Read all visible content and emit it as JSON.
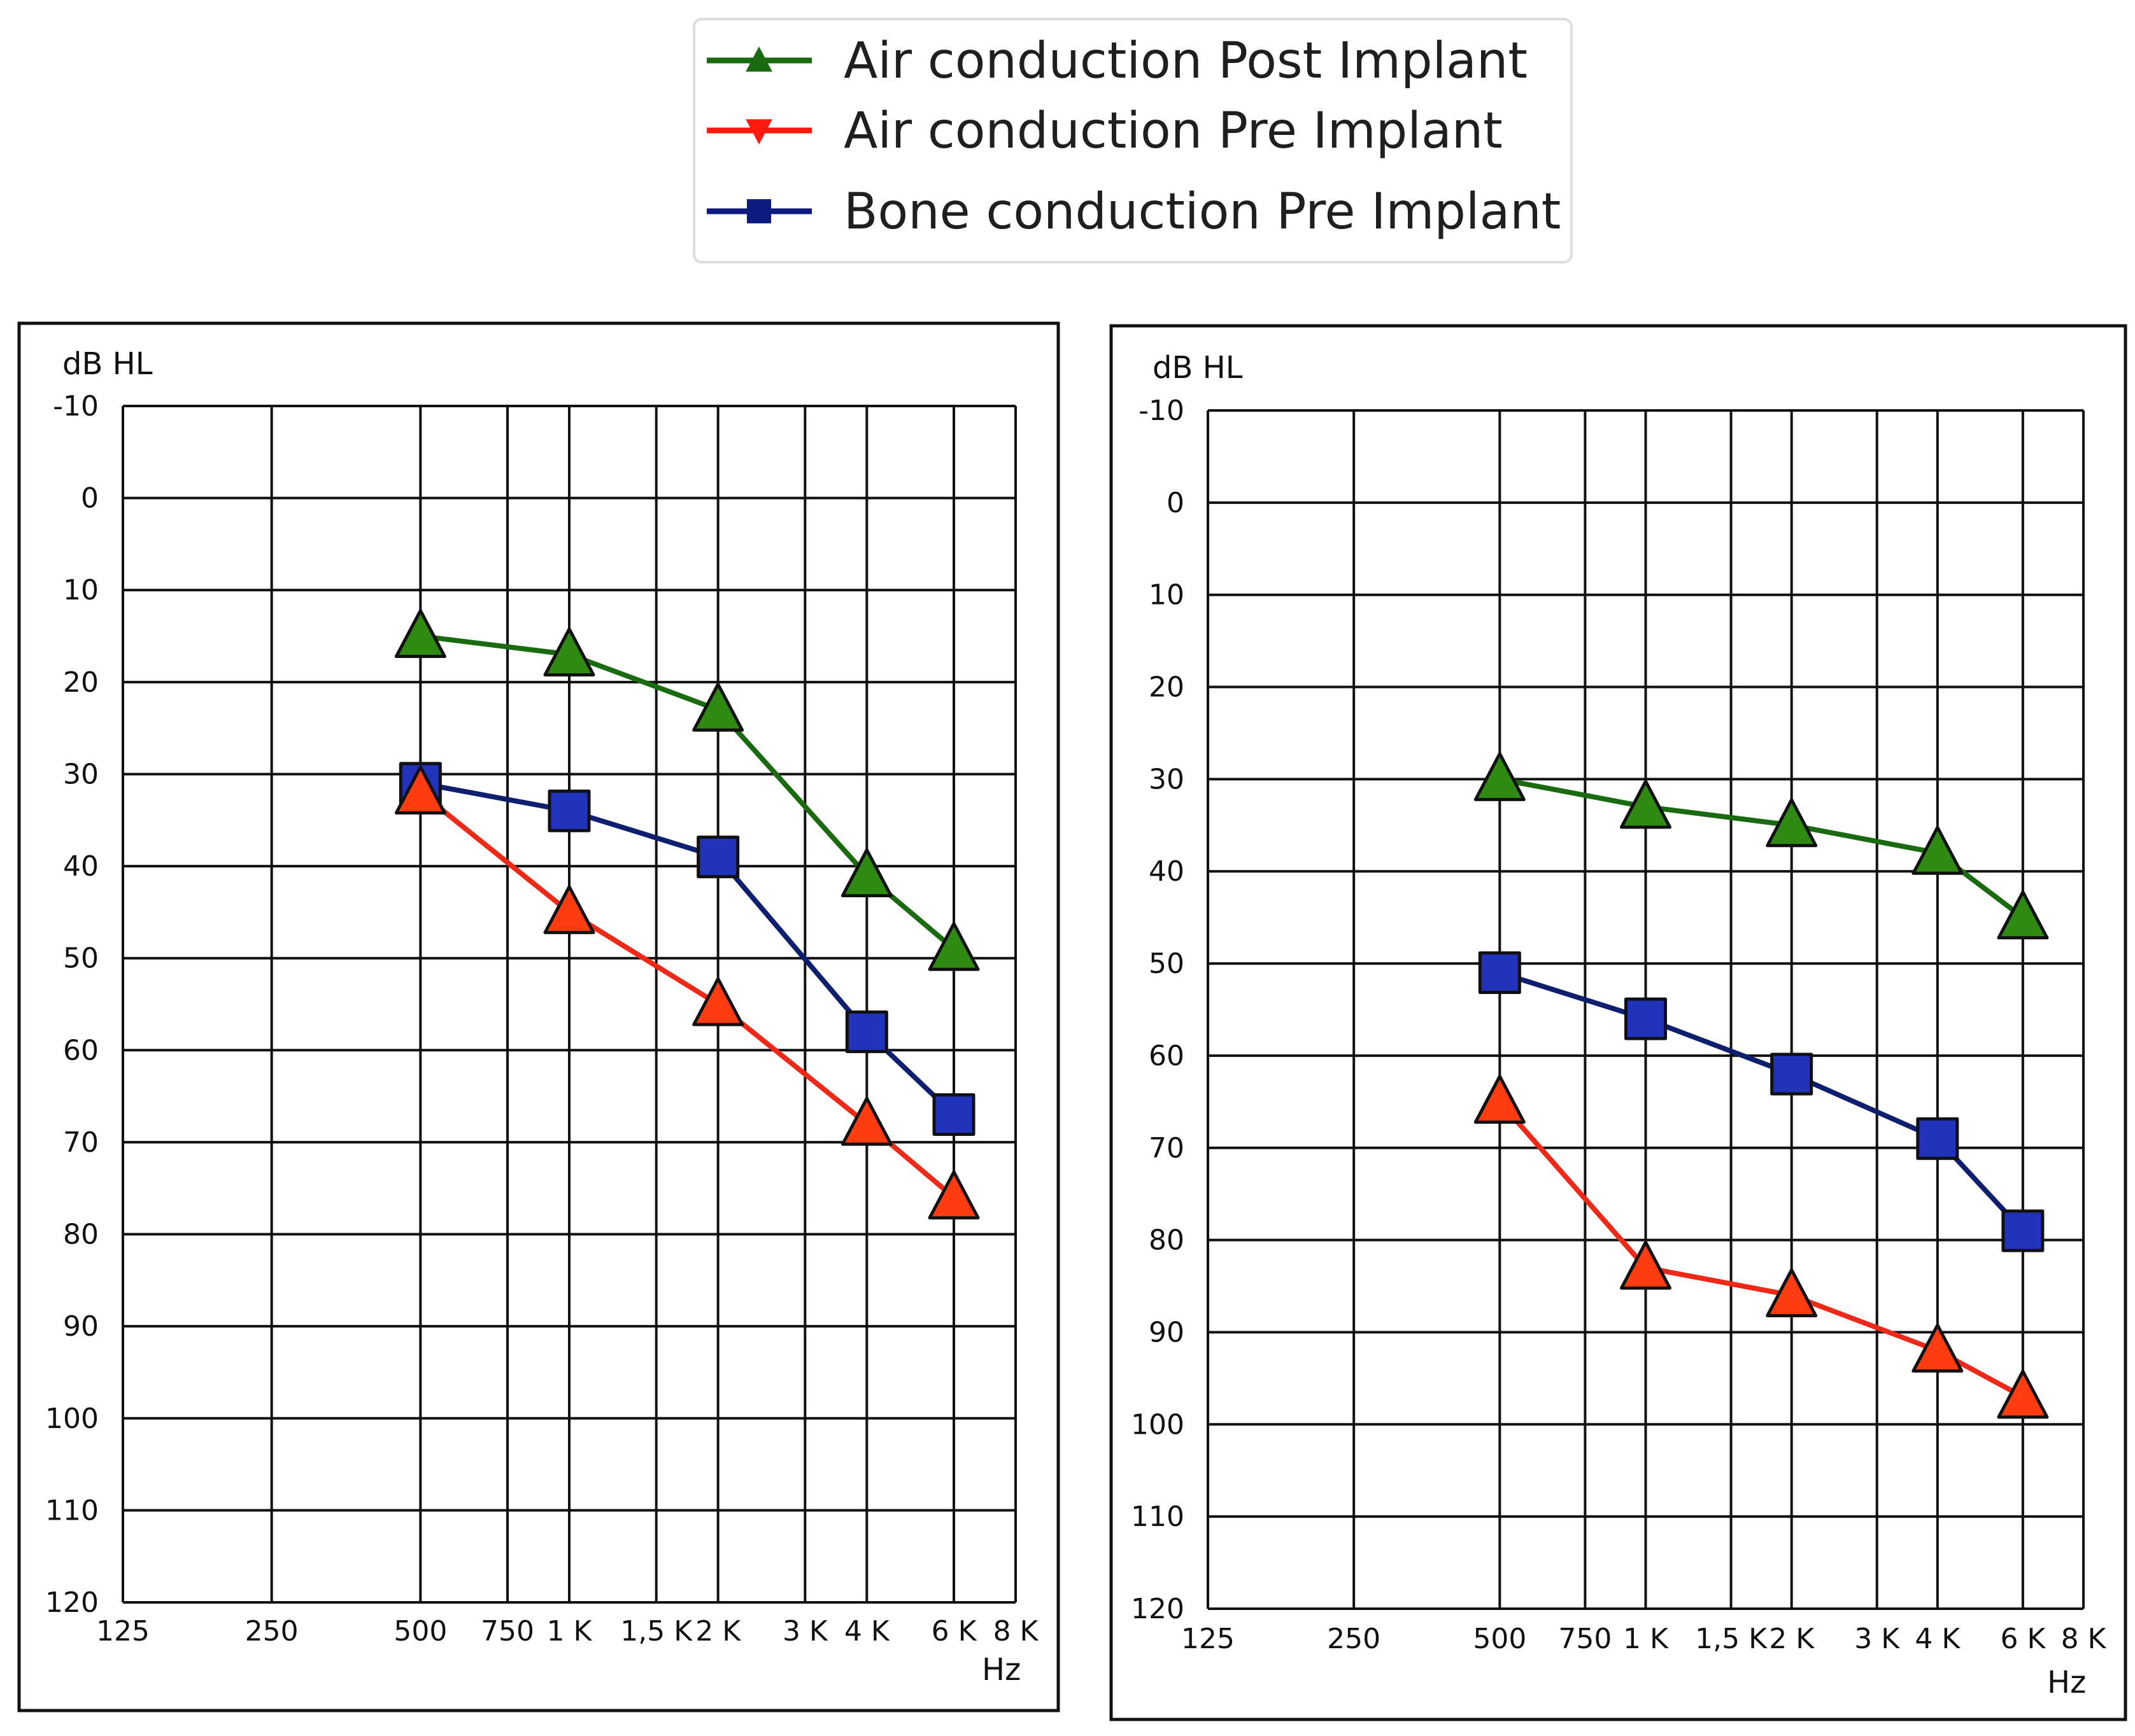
{
  "legend": {
    "items": [
      {
        "key": "air_post",
        "label": "Air conduction Post Implant",
        "color": "#1a6b0f",
        "marker": "triangle-up"
      },
      {
        "key": "air_pre",
        "label": "Air conduction Pre Implant",
        "color": "#ff1a10",
        "marker": "triangle-down"
      },
      {
        "key": "bone_pre",
        "label": "Bone conduction Pre Implant",
        "color": "#0d1a80",
        "marker": "square"
      }
    ]
  },
  "styles": {
    "marker_fill": {
      "air_post": "#2f8a12",
      "air_pre": "#ff3b10",
      "bone_pre": "#2233bb"
    },
    "line": {
      "air_post": "#1a6b0f",
      "air_pre": "#f02818",
      "bone_pre": "#0f1f70"
    }
  },
  "chart_data": [
    {
      "type": "line",
      "title": "",
      "ylabel": "dB HL",
      "xlabel": "Hz",
      "ylim": [
        -10,
        120
      ],
      "y_inverted": true,
      "y_ticks": [
        "-10",
        "0",
        "10",
        "20",
        "30",
        "40",
        "50",
        "60",
        "70",
        "80",
        "90",
        "100",
        "110",
        "120"
      ],
      "x_ticks": [
        "125",
        "250",
        "500",
        "750",
        "1 K",
        "1,5 K",
        "2 K",
        "3 K",
        "4 K",
        "6 K",
        "8 K"
      ],
      "grid": true,
      "categories": [
        "500",
        "1 K",
        "2 K",
        "4 K",
        "6 K"
      ],
      "series": [
        {
          "key": "air_post",
          "name": "Air conduction Post Implant",
          "values": [
            15,
            17,
            23,
            41,
            49
          ]
        },
        {
          "key": "air_pre",
          "name": "Air conduction Pre Implant",
          "values": [
            32,
            45,
            55,
            68,
            76
          ]
        },
        {
          "key": "bone_pre",
          "name": "Bone conduction Pre Implant",
          "values": [
            31,
            34,
            39,
            58,
            67
          ]
        }
      ]
    },
    {
      "type": "line",
      "title": "",
      "ylabel": "dB HL",
      "xlabel": "Hz",
      "ylim": [
        -10,
        120
      ],
      "y_inverted": true,
      "y_ticks": [
        "-10",
        "0",
        "10",
        "20",
        "30",
        "40",
        "50",
        "60",
        "70",
        "80",
        "90",
        "100",
        "110",
        "120"
      ],
      "x_ticks": [
        "125",
        "250",
        "500",
        "750",
        "1 K",
        "1,5 K",
        "2 K",
        "3 K",
        "4 K",
        "6 K",
        "8 K"
      ],
      "grid": true,
      "categories": [
        "500",
        "1 K",
        "2 K",
        "4 K",
        "6 K"
      ],
      "series": [
        {
          "key": "air_post",
          "name": "Air conduction Post Implant",
          "values": [
            30,
            33,
            35,
            38,
            45
          ]
        },
        {
          "key": "air_pre",
          "name": "Air conduction Pre Implant",
          "values": [
            65,
            83,
            86,
            92,
            97
          ]
        },
        {
          "key": "bone_pre",
          "name": "Bone conduction Pre Implant",
          "values": [
            51,
            56,
            62,
            69,
            79
          ]
        }
      ]
    }
  ]
}
